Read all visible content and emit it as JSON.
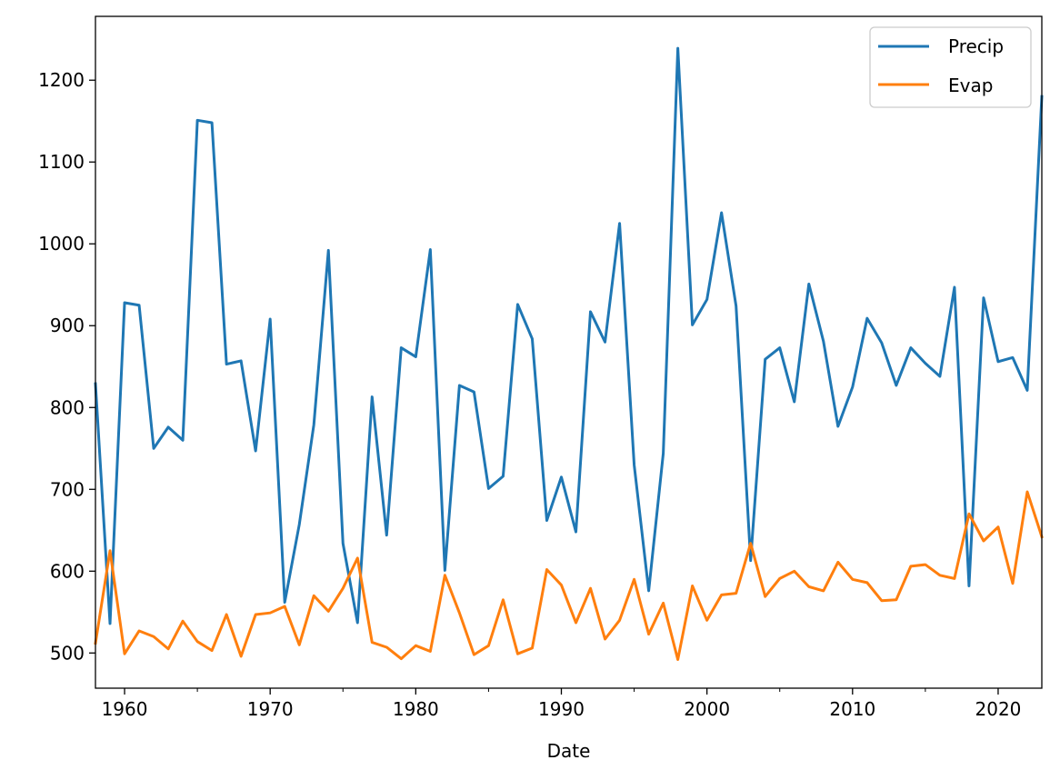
{
  "chart_data": {
    "type": "line",
    "xlabel": "Date",
    "ylabel": "",
    "xlim": [
      1958,
      2023
    ],
    "ylim": [
      457,
      1278
    ],
    "x_ticks": [
      1960,
      1970,
      1980,
      1990,
      2000,
      2010,
      2020
    ],
    "x_minor_ticks": [
      1965,
      1975,
      1985,
      1995,
      2005,
      2015
    ],
    "y_ticks": [
      500,
      600,
      700,
      800,
      900,
      1000,
      1100,
      1200
    ],
    "grid": false,
    "legend_position": "top-right",
    "x": [
      1958,
      1959,
      1960,
      1961,
      1962,
      1963,
      1964,
      1965,
      1966,
      1967,
      1968,
      1969,
      1970,
      1971,
      1972,
      1973,
      1974,
      1975,
      1976,
      1977,
      1978,
      1979,
      1980,
      1981,
      1982,
      1983,
      1984,
      1985,
      1986,
      1987,
      1988,
      1989,
      1990,
      1991,
      1992,
      1993,
      1994,
      1995,
      1996,
      1997,
      1998,
      1999,
      2000,
      2001,
      2002,
      2003,
      2004,
      2005,
      2006,
      2007,
      2008,
      2009,
      2010,
      2011,
      2012,
      2013,
      2014,
      2015,
      2016,
      2017,
      2018,
      2019,
      2020,
      2021,
      2022,
      2023
    ],
    "series": [
      {
        "name": "Precip",
        "color": "#1f77b4",
        "values": [
          829,
          536,
          928,
          925,
          750,
          776,
          760,
          1151,
          1148,
          853,
          857,
          747,
          908,
          562,
          657,
          779,
          992,
          634,
          537,
          813,
          644,
          873,
          862,
          993,
          601,
          827,
          819,
          701,
          716,
          926,
          884,
          662,
          715,
          648,
          917,
          880,
          1025,
          730,
          576,
          744,
          1239,
          901,
          932,
          1038,
          924,
          613,
          859,
          873,
          807,
          951,
          881,
          777,
          825,
          909,
          879,
          827,
          873,
          854,
          838,
          947,
          582,
          934,
          856,
          861,
          821,
          1180
        ]
      },
      {
        "name": "Evap",
        "color": "#ff7f0e",
        "values": [
          512,
          625,
          499,
          527,
          520,
          505,
          539,
          514,
          503,
          547,
          496,
          547,
          549,
          557,
          510,
          570,
          551,
          579,
          616,
          513,
          507,
          493,
          509,
          502,
          595,
          549,
          498,
          509,
          565,
          499,
          506,
          602,
          583,
          537,
          579,
          517,
          540,
          590,
          523,
          561,
          492,
          582,
          540,
          571,
          573,
          634,
          569,
          591,
          600,
          581,
          576,
          611,
          590,
          586,
          564,
          565,
          606,
          608,
          595,
          591,
          670,
          637,
          654,
          585,
          697,
          642
        ]
      }
    ]
  }
}
